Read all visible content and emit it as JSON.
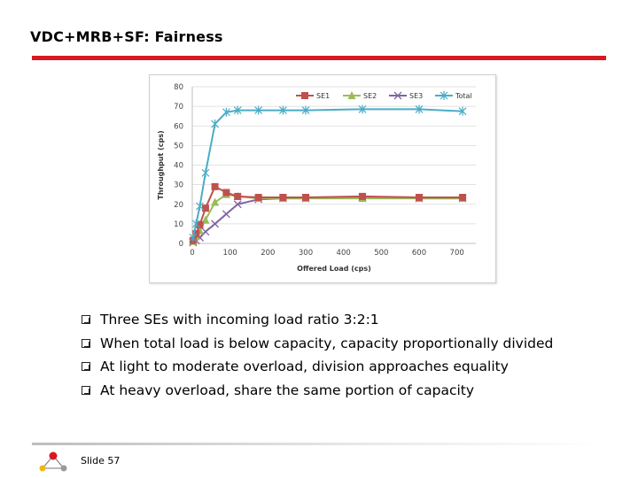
{
  "slide": {
    "title": "VDC+MRB+SF: Fairness",
    "footer": "Slide 57"
  },
  "bullets": [
    "Three SEs with incoming load ratio 3:2:1",
    "When total load is below capacity, capacity proportionally divided",
    "At light to moderate overload, division approaches equality",
    "At heavy overload, share the same portion of capacity"
  ],
  "colors": {
    "accent": "#d71920",
    "SE1": "#c0504d",
    "SE2": "#9bbb59",
    "SE3": "#8064a2",
    "Total": "#4bacc6"
  },
  "chart_data": {
    "type": "line",
    "xlabel": "Offered Load (cps)",
    "ylabel": "Throughput (cps)",
    "xlim": [
      0,
      750
    ],
    "ylim": [
      0,
      80
    ],
    "xticks": [
      0,
      100,
      200,
      300,
      400,
      500,
      600,
      700
    ],
    "yticks": [
      0,
      10,
      20,
      30,
      40,
      50,
      60,
      70,
      80
    ],
    "grid": true,
    "legend_position": "top",
    "x": [
      2,
      10,
      20,
      35,
      60,
      90,
      120,
      175,
      240,
      300,
      450,
      600,
      715
    ],
    "series": [
      {
        "name": "SE1",
        "marker": "square",
        "values": [
          1.5,
          5,
          9.5,
          18,
          29,
          26,
          24,
          23.5,
          23.5,
          23.5,
          24,
          23.5,
          23.5
        ]
      },
      {
        "name": "SE2",
        "marker": "triangle",
        "values": [
          1,
          3.5,
          6.5,
          12,
          21,
          25,
          24,
          23,
          23,
          23,
          23,
          23,
          23
        ]
      },
      {
        "name": "SE3",
        "marker": "cross",
        "values": [
          0.5,
          1.5,
          3,
          6,
          10,
          15,
          20,
          22.5,
          23,
          23,
          23.5,
          23,
          23
        ]
      },
      {
        "name": "Total",
        "marker": "star",
        "values": [
          3,
          10,
          19,
          36,
          61,
          67,
          68,
          68,
          68,
          68,
          68.5,
          68.5,
          67.5
        ]
      }
    ]
  }
}
